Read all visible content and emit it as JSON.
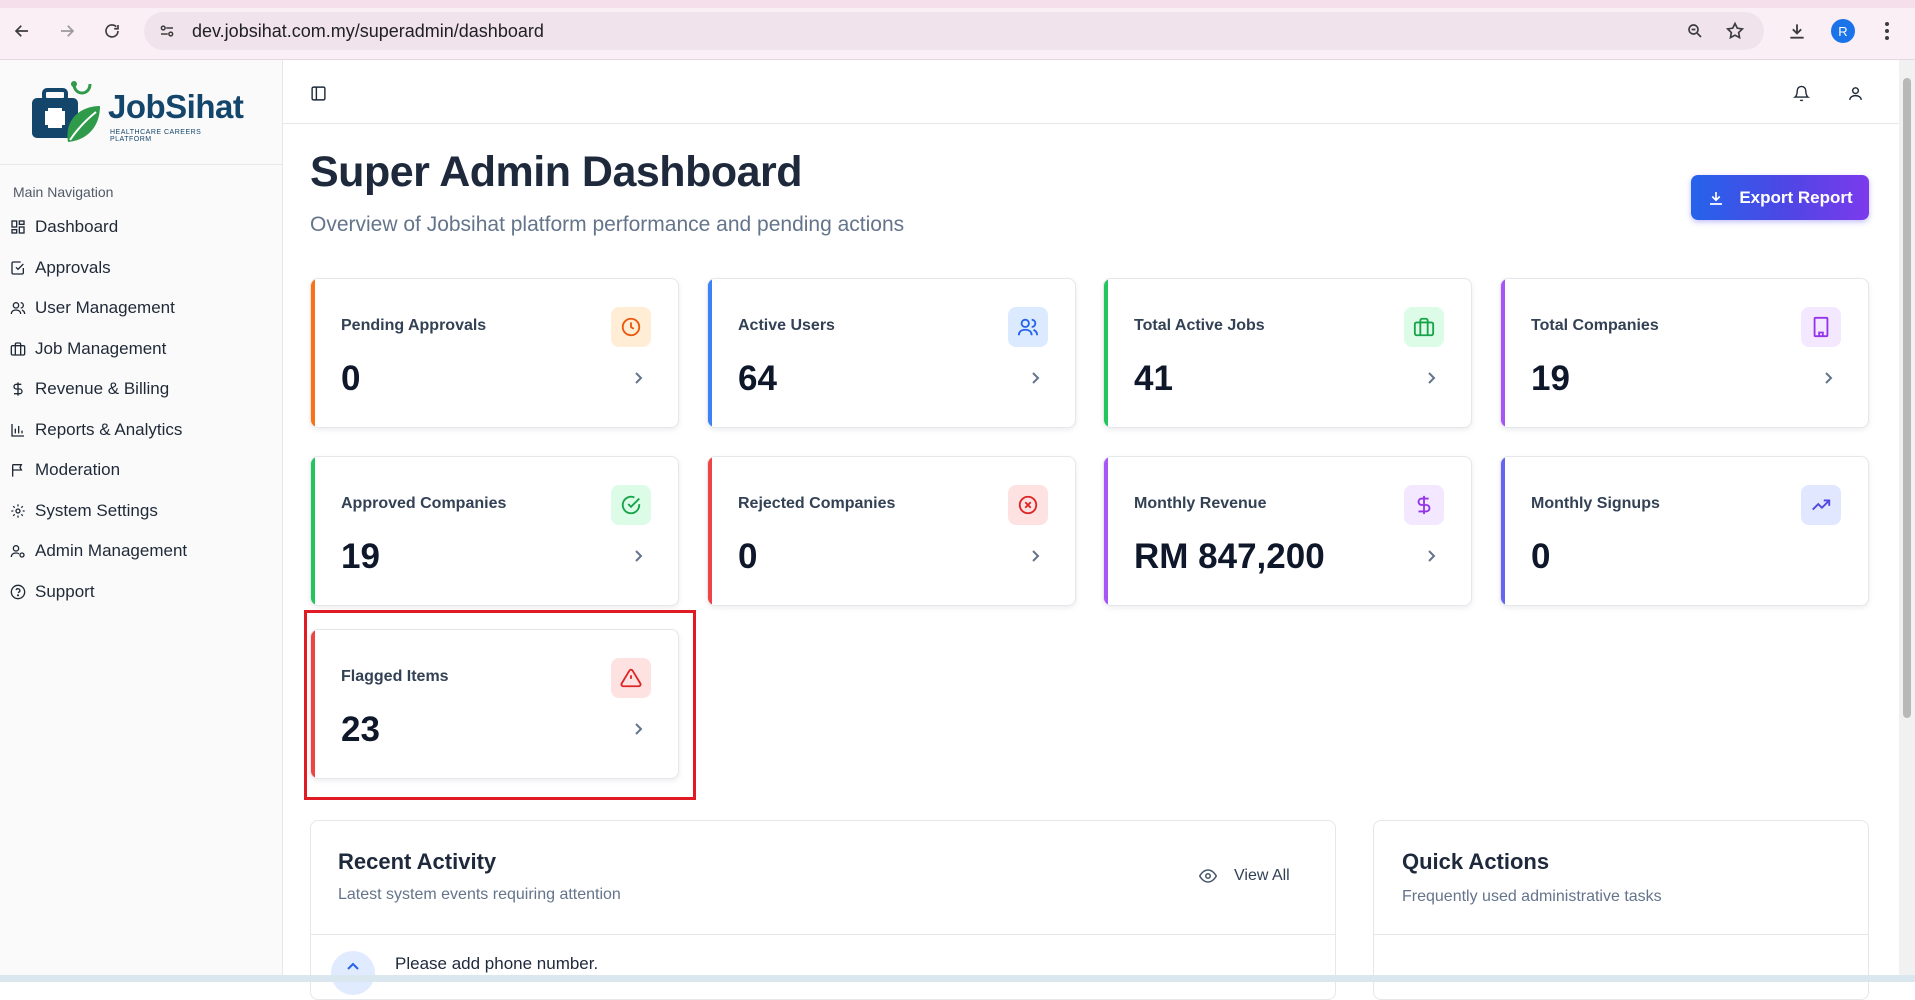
{
  "browser": {
    "url": "dev.jobsihat.com.my/superadmin/dashboard",
    "profile_initial": "R"
  },
  "brand": {
    "name": "JobSihat",
    "tagline": "HEALTHCARE CAREERS PLATFORM"
  },
  "sidebar": {
    "heading": "Main Navigation",
    "items": [
      {
        "label": "Dashboard",
        "icon": "dashboard-icon"
      },
      {
        "label": "Approvals",
        "icon": "check-square-icon"
      },
      {
        "label": "User Management",
        "icon": "users-icon"
      },
      {
        "label": "Job Management",
        "icon": "briefcase-icon"
      },
      {
        "label": "Revenue & Billing",
        "icon": "dollar-icon"
      },
      {
        "label": "Reports & Analytics",
        "icon": "bar-chart-icon"
      },
      {
        "label": "Moderation",
        "icon": "flag-icon"
      },
      {
        "label": "System Settings",
        "icon": "gear-icon"
      },
      {
        "label": "Admin Management",
        "icon": "user-cog-icon"
      },
      {
        "label": "Support",
        "icon": "help-circle-icon"
      }
    ]
  },
  "header": {
    "title": "Super Admin Dashboard",
    "subtitle": "Overview of Jobsihat platform performance and pending actions",
    "export_label": "Export Report"
  },
  "stats": [
    {
      "label": "Pending Approvals",
      "value": "0",
      "accent": "#f97316",
      "icon": "clock-icon",
      "icon_bg": "#ffedd5",
      "icon_color": "#ea580c"
    },
    {
      "label": "Active Users",
      "value": "64",
      "accent": "#3b82f6",
      "icon": "users-icon",
      "icon_bg": "#dbeafe",
      "icon_color": "#2563eb"
    },
    {
      "label": "Total Active Jobs",
      "value": "41",
      "accent": "#22c55e",
      "icon": "briefcase-icon",
      "icon_bg": "#dcfce7",
      "icon_color": "#16a34a"
    },
    {
      "label": "Total Companies",
      "value": "19",
      "accent": "#a855f7",
      "icon": "building-icon",
      "icon_bg": "#f3e8ff",
      "icon_color": "#9333ea"
    },
    {
      "label": "Approved Companies",
      "value": "19",
      "accent": "#22c55e",
      "icon": "check-circle-icon",
      "icon_bg": "#dcfce7",
      "icon_color": "#16a34a"
    },
    {
      "label": "Rejected Companies",
      "value": "0",
      "accent": "#ef4444",
      "icon": "x-circle-icon",
      "icon_bg": "#fee2e2",
      "icon_color": "#dc2626"
    },
    {
      "label": "Monthly Revenue",
      "value": "RM 847,200",
      "accent": "#a855f7",
      "icon": "dollar-icon",
      "icon_bg": "#f3e8ff",
      "icon_color": "#9333ea"
    },
    {
      "label": "Monthly Signups",
      "value": "0",
      "accent": "#6366f1",
      "icon": "trending-up-icon",
      "icon_bg": "#e0e7ff",
      "icon_color": "#4f46e5"
    },
    {
      "label": "Flagged Items",
      "value": "23",
      "accent": "#ef4444",
      "icon": "alert-triangle-icon",
      "icon_bg": "#fee2e2",
      "icon_color": "#dc2626"
    }
  ],
  "recent_activity": {
    "title": "Recent Activity",
    "subtitle": "Latest system events requiring attention",
    "view_all_label": "View All",
    "items": [
      {
        "text": "Please add phone number."
      }
    ]
  },
  "quick_actions": {
    "title": "Quick Actions",
    "subtitle": "Frequently used administrative tasks"
  }
}
